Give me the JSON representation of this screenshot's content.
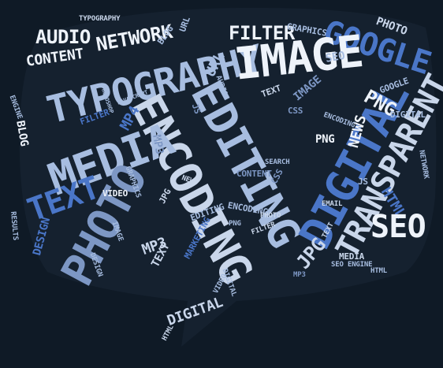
{
  "palette": {
    "background": "#0f1a26",
    "white": "#eef3fa",
    "pale": "#c9d6ea",
    "light": "#a7bde0",
    "mid": "#7d97c4",
    "blue": "#4a76c8",
    "dark": "#3a5a99"
  },
  "words": {
    "typography_small": "TYPOGRAPHY",
    "audio": "AUDIO",
    "network": "NETWORK",
    "content": "CONTENT",
    "blog_top": "BLOG",
    "url_top": "URL",
    "typography": "TYPOGRAPHY",
    "filter": "FILTER",
    "graphics_top": "GRAPHICS",
    "google": "GOOGLE",
    "photo_top": "PHOTO",
    "image_big": "IMAGE",
    "seo_top": "SEO",
    "png": "PNG",
    "news": "NEWS",
    "media": "MEDIA",
    "text_big": "TEXT",
    "photo_big": "PHOTO",
    "encoding": "ENCODING",
    "editing": "EDITING",
    "digital_big": "DIGITAL",
    "transparent": "TRANSPARENT",
    "seo_big": "SEO",
    "html": "HTML",
    "jpg_right": "JPG",
    "media_small": "MEDIA",
    "mp4": "MP4",
    "mp3": "MP3",
    "blog_left": "BLOG",
    "design": "DESIGN",
    "filter_left": "FILTER",
    "video": "VIDEO",
    "jpg_mid": "JPG",
    "digital_bottom": "DIGITAL",
    "marketing": "MARKETING",
    "editing_small": "EDITING",
    "encoding_small": "ENCODING",
    "content_mid": "CONTENT",
    "css_mid": "CSS",
    "text_mid": "TEXT",
    "url_mid": "URL",
    "js_mid": "JS",
    "image_mid": "IMAGE",
    "photoshop": "PHOTOSHOP",
    "javascript": "JAVASCRIPT",
    "engine": "ENGINE",
    "search": "SEARCH",
    "results": "RESULTS",
    "network_right": "NETWORK",
    "graphics_left": "GRAPHICS",
    "html_small": "HTML",
    "text_small": "TEXT",
    "email": "EMAIL",
    "seo_engine": "SEO ENGINE",
    "news_mid": "NEWS",
    "js_right": "JS",
    "image_small": "IMAGE",
    "digital_small": "DIGITAL",
    "google_small": "GOOGLE",
    "css_right": "CSS",
    "png_small": "PNG",
    "filter_small": "FILTER",
    "photo_small": "PHOTO",
    "design_small": "DESIGN",
    "mp3_small": "MP3",
    "video_small": "VIDEO",
    "audio_small": "AUDIO",
    "encoding_mid": "ENCODING",
    "digital_right": "DIGITAL"
  }
}
